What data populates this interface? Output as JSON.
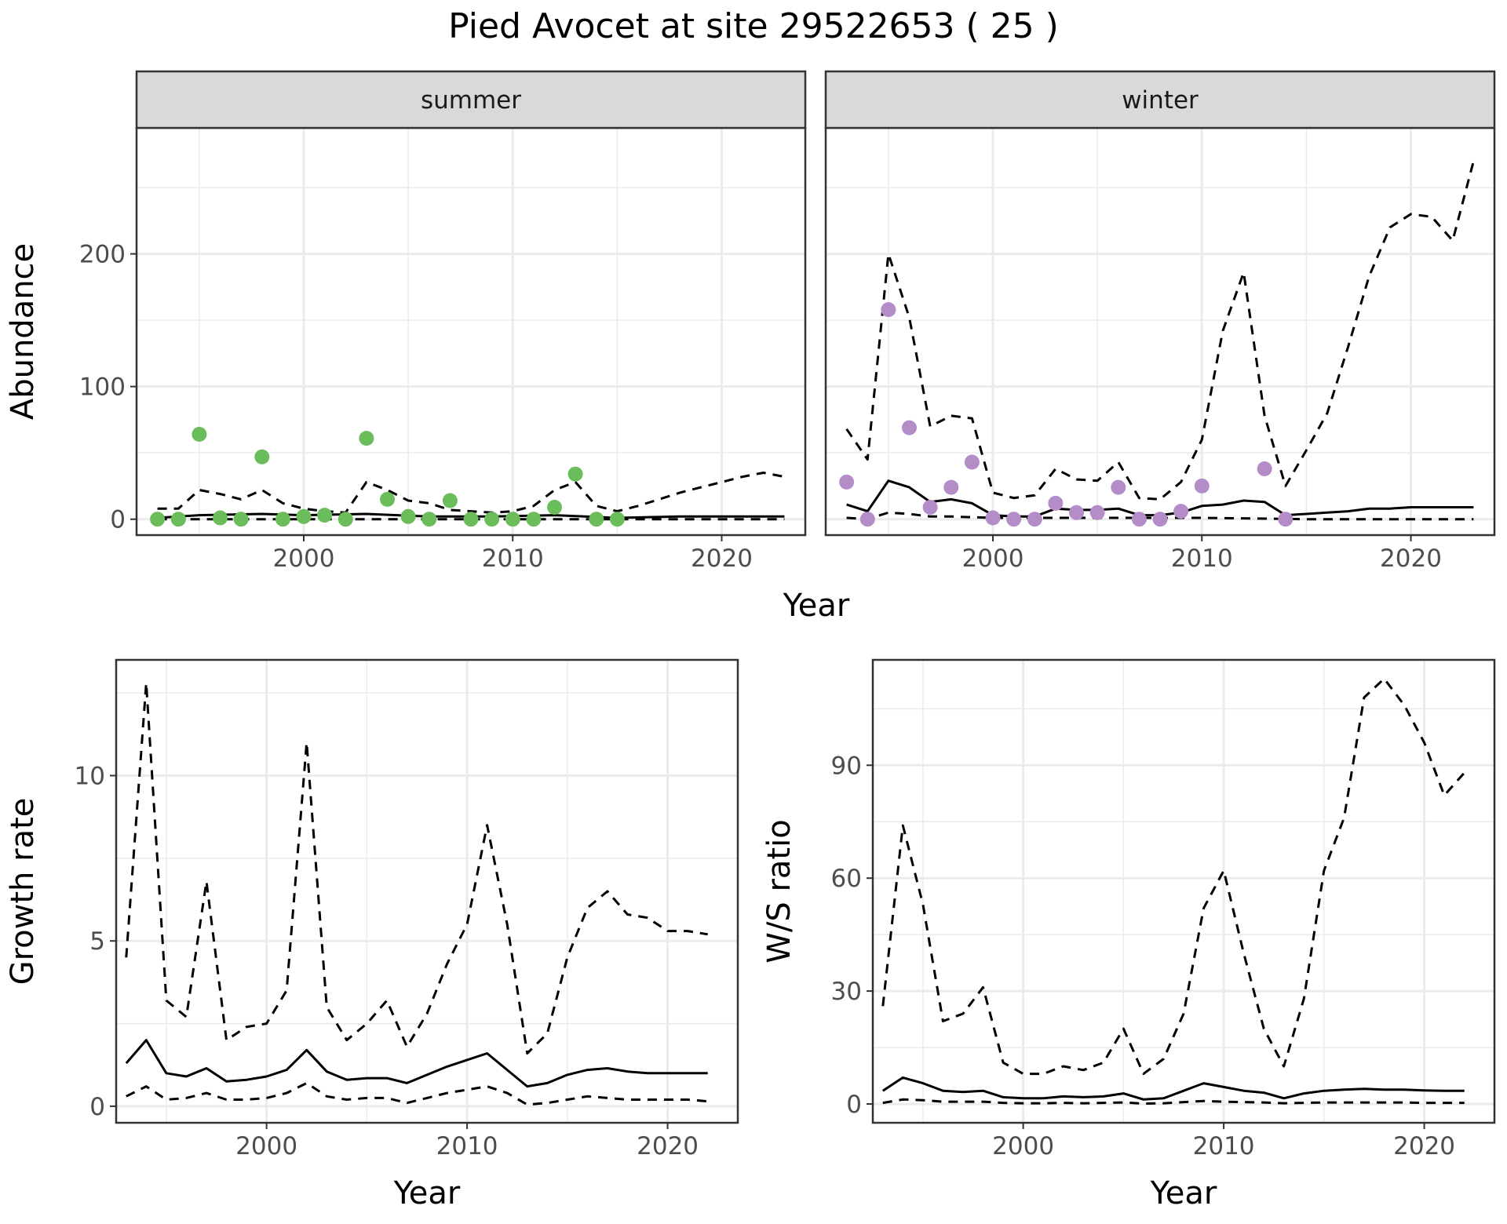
{
  "title": "Pied Avocet at site 29522653 ( 25 )",
  "colors": {
    "summer_points": "#6ABD5A",
    "winter_points": "#B48CC8",
    "line": "#000000",
    "strip_bg": "#D9D9D9",
    "grid": "#EBEBEB"
  },
  "chart_data": [
    {
      "type": "scatter",
      "panel": "summer",
      "strip_label": "summer",
      "xlabel": "Year",
      "ylabel": "Abundance",
      "xlim": [
        1992,
        2024
      ],
      "ylim": [
        -12,
        295
      ],
      "xticks": [
        2000,
        2010,
        2020
      ],
      "yticks": [
        0,
        100,
        200
      ],
      "points": {
        "x": [
          1993,
          1994,
          1995,
          1996,
          1997,
          1998,
          1999,
          2000,
          2001,
          2002,
          2003,
          2004,
          2005,
          2006,
          2007,
          2008,
          2009,
          2010,
          2011,
          2012,
          2013,
          2014,
          2015
        ],
        "y": [
          0,
          0,
          64,
          1,
          0,
          47,
          0,
          2,
          3,
          0,
          61,
          15,
          2,
          0,
          14,
          0,
          0,
          0,
          0,
          9,
          34,
          0,
          0
        ]
      },
      "series": [
        {
          "name": "",
          "style": "solid",
          "x": [
            1993,
            1995,
            1998,
            2000,
            2003,
            2006,
            2009,
            2012,
            2015,
            2018,
            2021,
            2023
          ],
          "values": [
            1,
            3,
            4,
            3,
            4,
            2,
            2,
            3,
            1,
            2,
            2,
            2
          ]
        },
        {
          "name": "",
          "style": "dashed",
          "x": [
            1993,
            1994,
            1995,
            1996,
            1997,
            1998,
            1999,
            2000,
            2001,
            2002,
            2003,
            2004,
            2005,
            2006,
            2007,
            2008,
            2009,
            2010,
            2011,
            2012,
            2013,
            2014,
            2015,
            2016,
            2017,
            2018,
            2019,
            2020,
            2021,
            2022,
            2023
          ],
          "values": [
            8,
            8,
            22,
            19,
            15,
            22,
            12,
            8,
            6,
            5,
            28,
            22,
            14,
            12,
            7,
            6,
            5,
            6,
            10,
            22,
            28,
            10,
            6,
            10,
            15,
            20,
            24,
            28,
            32,
            35,
            32
          ]
        },
        {
          "name": "",
          "style": "dashed",
          "x": [
            1993,
            2000,
            2005,
            2010,
            2015,
            2020,
            2023
          ],
          "values": [
            0,
            0,
            0,
            0,
            0,
            0,
            0
          ]
        }
      ]
    },
    {
      "type": "scatter",
      "panel": "winter",
      "strip_label": "winter",
      "xlabel": "Year",
      "ylabel": "Abundance",
      "xlim": [
        1992,
        2024
      ],
      "ylim": [
        -12,
        295
      ],
      "xticks": [
        2000,
        2010,
        2020
      ],
      "yticks": [
        0,
        100,
        200
      ],
      "points": {
        "x": [
          1993,
          1994,
          1995,
          1996,
          1997,
          1998,
          1999,
          2000,
          2001,
          2002,
          2003,
          2004,
          2005,
          2006,
          2007,
          2008,
          2009,
          2010,
          2013,
          2014
        ],
        "y": [
          28,
          0,
          158,
          69,
          9,
          24,
          43,
          1,
          0,
          0,
          12,
          5,
          5,
          24,
          0,
          0,
          6,
          25,
          38,
          0
        ]
      },
      "series": [
        {
          "name": "",
          "style": "solid",
          "x": [
            1993,
            1994,
            1995,
            1996,
            1997,
            1998,
            1999,
            2000,
            2001,
            2002,
            2003,
            2004,
            2005,
            2006,
            2007,
            2008,
            2009,
            2010,
            2011,
            2012,
            2013,
            2014,
            2015,
            2016,
            2017,
            2018,
            2019,
            2020,
            2021,
            2022,
            2023
          ],
          "values": [
            11,
            6,
            29,
            24,
            13,
            15,
            12,
            3,
            2,
            2,
            8,
            7,
            7,
            8,
            3,
            3,
            5,
            10,
            11,
            14,
            13,
            3,
            4,
            5,
            6,
            8,
            8,
            9,
            9,
            9,
            9
          ]
        },
        {
          "name": "",
          "style": "dashed",
          "x": [
            1993,
            1994,
            1995,
            1996,
            1997,
            1998,
            1999,
            2000,
            2001,
            2002,
            2003,
            2004,
            2005,
            2006,
            2007,
            2008,
            2009,
            2010,
            2011,
            2012,
            2013,
            2014,
            2015,
            2016,
            2017,
            2018,
            2019,
            2020,
            2021,
            2022,
            2023
          ],
          "values": [
            68,
            45,
            200,
            152,
            70,
            78,
            76,
            20,
            16,
            18,
            38,
            30,
            29,
            43,
            16,
            15,
            28,
            60,
            142,
            186,
            78,
            25,
            52,
            80,
            130,
            183,
            220,
            230,
            228,
            210,
            270
          ]
        },
        {
          "name": "",
          "style": "dashed",
          "x": [
            1993,
            1994,
            1995,
            1996,
            1997,
            1998,
            2000,
            2005,
            2010,
            2015,
            2020,
            2023
          ],
          "values": [
            1,
            0,
            5,
            4,
            2,
            2,
            1,
            1,
            1,
            0,
            0,
            0
          ]
        }
      ]
    },
    {
      "type": "line",
      "panel": "growth",
      "xlabel": "Year",
      "ylabel": "Growth rate",
      "xlim": [
        1992.5,
        2023.5
      ],
      "ylim": [
        -0.5,
        13.5
      ],
      "xticks": [
        2000,
        2010,
        2020
      ],
      "yticks": [
        0,
        5,
        10
      ],
      "series": [
        {
          "name": "",
          "style": "solid",
          "x": [
            1993,
            1994,
            1995,
            1996,
            1997,
            1998,
            1999,
            2000,
            2001,
            2002,
            2003,
            2004,
            2005,
            2006,
            2007,
            2008,
            2009,
            2010,
            2011,
            2012,
            2013,
            2014,
            2015,
            2016,
            2017,
            2018,
            2019,
            2020,
            2021,
            2022
          ],
          "values": [
            1.3,
            2.0,
            1.0,
            0.9,
            1.15,
            0.75,
            0.8,
            0.9,
            1.1,
            1.7,
            1.05,
            0.8,
            0.85,
            0.85,
            0.7,
            0.95,
            1.2,
            1.4,
            1.6,
            1.1,
            0.6,
            0.7,
            0.95,
            1.1,
            1.15,
            1.05,
            1.0,
            1.0,
            1.0,
            1.0
          ]
        },
        {
          "name": "",
          "style": "dashed",
          "x": [
            1993,
            1994,
            1995,
            1996,
            1997,
            1998,
            1999,
            2000,
            2001,
            2002,
            2003,
            2004,
            2005,
            2006,
            2007,
            2008,
            2009,
            2010,
            2011,
            2012,
            2013,
            2014,
            2015,
            2016,
            2017,
            2018,
            2019,
            2020,
            2021,
            2022
          ],
          "values": [
            4.5,
            12.8,
            3.2,
            2.7,
            6.8,
            2.0,
            2.4,
            2.5,
            3.5,
            11.0,
            3.0,
            2.0,
            2.5,
            3.2,
            1.8,
            2.8,
            4.3,
            5.5,
            8.5,
            5.5,
            1.6,
            2.2,
            4.5,
            6.0,
            6.5,
            5.8,
            5.7,
            5.3,
            5.3,
            5.2
          ]
        },
        {
          "name": "",
          "style": "dashed",
          "x": [
            1993,
            1994,
            1995,
            1996,
            1997,
            1998,
            1999,
            2000,
            2001,
            2002,
            2003,
            2004,
            2005,
            2006,
            2007,
            2008,
            2009,
            2010,
            2011,
            2012,
            2013,
            2014,
            2015,
            2016,
            2017,
            2018,
            2019,
            2020,
            2021,
            2022
          ],
          "values": [
            0.3,
            0.6,
            0.2,
            0.25,
            0.4,
            0.2,
            0.2,
            0.25,
            0.4,
            0.7,
            0.3,
            0.2,
            0.25,
            0.25,
            0.1,
            0.25,
            0.4,
            0.5,
            0.6,
            0.4,
            0.05,
            0.1,
            0.2,
            0.3,
            0.25,
            0.2,
            0.2,
            0.2,
            0.2,
            0.15
          ]
        }
      ]
    },
    {
      "type": "line",
      "panel": "ratio",
      "xlabel": "Year",
      "ylabel": "W/S ratio",
      "xlim": [
        1992.5,
        2023.5
      ],
      "ylim": [
        -5,
        118
      ],
      "xticks": [
        2000,
        2010,
        2020
      ],
      "yticks": [
        0,
        30,
        60,
        90
      ],
      "series": [
        {
          "name": "",
          "style": "solid",
          "x": [
            1993,
            1994,
            1995,
            1996,
            1997,
            1998,
            1999,
            2000,
            2001,
            2002,
            2003,
            2004,
            2005,
            2006,
            2007,
            2008,
            2009,
            2010,
            2011,
            2012,
            2013,
            2014,
            2015,
            2016,
            2017,
            2018,
            2019,
            2020,
            2021,
            2022
          ],
          "values": [
            3.5,
            7.0,
            5.5,
            3.5,
            3.2,
            3.5,
            1.8,
            1.5,
            1.5,
            2.0,
            1.8,
            2.0,
            2.8,
            1.2,
            1.5,
            3.5,
            5.5,
            4.5,
            3.5,
            3.0,
            1.5,
            2.8,
            3.5,
            3.8,
            4.0,
            3.8,
            3.8,
            3.6,
            3.5,
            3.5
          ]
        },
        {
          "name": "",
          "style": "dashed",
          "x": [
            1993,
            1994,
            1995,
            1996,
            1997,
            1998,
            1999,
            2000,
            2001,
            2002,
            2003,
            2004,
            2005,
            2006,
            2007,
            2008,
            2009,
            2010,
            2011,
            2012,
            2013,
            2014,
            2015,
            2016,
            2017,
            2018,
            2019,
            2020,
            2021,
            2022
          ],
          "values": [
            26,
            74,
            53,
            22,
            24,
            31,
            11,
            8,
            8,
            10,
            9,
            11,
            20,
            8,
            12,
            24,
            52,
            62,
            40,
            20,
            10,
            28,
            62,
            76,
            108,
            113,
            106,
            96,
            82,
            88
          ]
        },
        {
          "name": "",
          "style": "dashed",
          "x": [
            1993,
            1994,
            1995,
            1996,
            1997,
            1998,
            1999,
            2000,
            2001,
            2002,
            2003,
            2004,
            2005,
            2006,
            2007,
            2008,
            2009,
            2010,
            2011,
            2012,
            2013,
            2014,
            2015,
            2016,
            2017,
            2018,
            2019,
            2020,
            2021,
            2022
          ],
          "values": [
            0.3,
            1.2,
            1.0,
            0.6,
            0.6,
            0.6,
            0.3,
            0.2,
            0.2,
            0.3,
            0.2,
            0.3,
            0.4,
            0.1,
            0.2,
            0.5,
            0.8,
            0.6,
            0.5,
            0.4,
            0.2,
            0.3,
            0.4,
            0.4,
            0.4,
            0.4,
            0.4,
            0.3,
            0.3,
            0.3
          ]
        }
      ]
    }
  ]
}
